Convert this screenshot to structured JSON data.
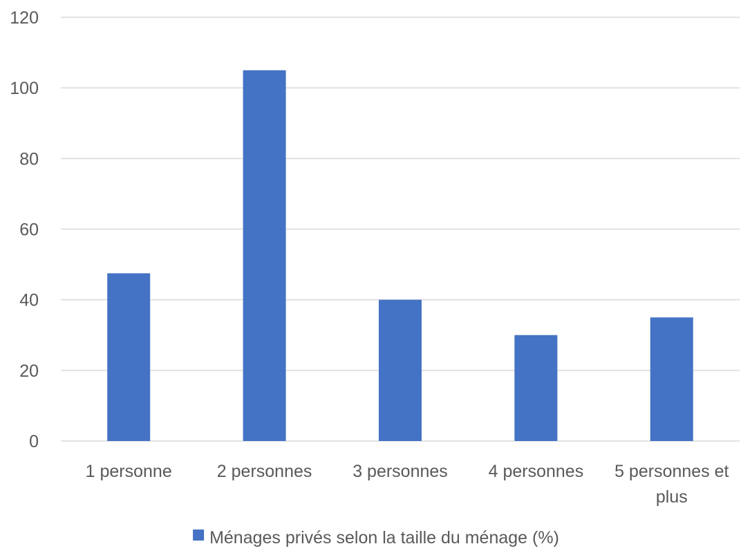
{
  "chart_data": {
    "type": "bar",
    "title": "",
    "xlabel": "",
    "ylabel": "",
    "categories": [
      [
        "1 personne"
      ],
      [
        "2 personnes"
      ],
      [
        "3 personnes"
      ],
      [
        "4 personnes"
      ],
      [
        "5 personnes et",
        "plus"
      ]
    ],
    "series": [
      {
        "name": "Ménages privés selon la taille du ménage (%)",
        "color": "#4472c4",
        "values": [
          47.5,
          105,
          40,
          30,
          35
        ]
      }
    ],
    "ylim": [
      0,
      120
    ],
    "yticks": [
      "0",
      "20",
      "40",
      "60",
      "80",
      "100",
      "120"
    ],
    "grid": true,
    "legend_position": "bottom"
  }
}
